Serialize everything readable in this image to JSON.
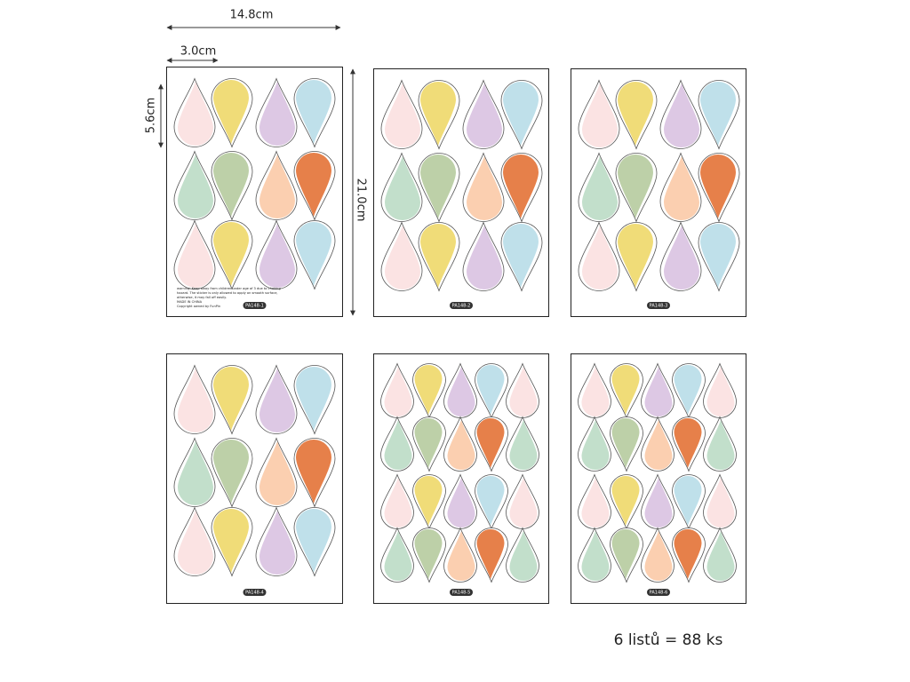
{
  "dimensions": {
    "sheet_width": "14.8cm",
    "drop_width": "3.0cm",
    "drop_height": "5.6cm",
    "sheet_height": "21.0cm"
  },
  "sheets": [
    {
      "label": "PA148-1",
      "notes": [
        "warning: Keep away from children under age of 3 due to choking",
        "hazard. The sticker is only allowed to apply on smooth surface,",
        "otherwise, it may fall off easily.",
        "MADE IN CHINA",
        "Copyright owned by FunPin"
      ]
    },
    {
      "label": "PA148-2"
    },
    {
      "label": "PA148-3"
    },
    {
      "label": "PA148-4"
    },
    {
      "label": "PA148-5"
    },
    {
      "label": "PA148-6"
    }
  ],
  "summary": "6 listů = 88 ks"
}
